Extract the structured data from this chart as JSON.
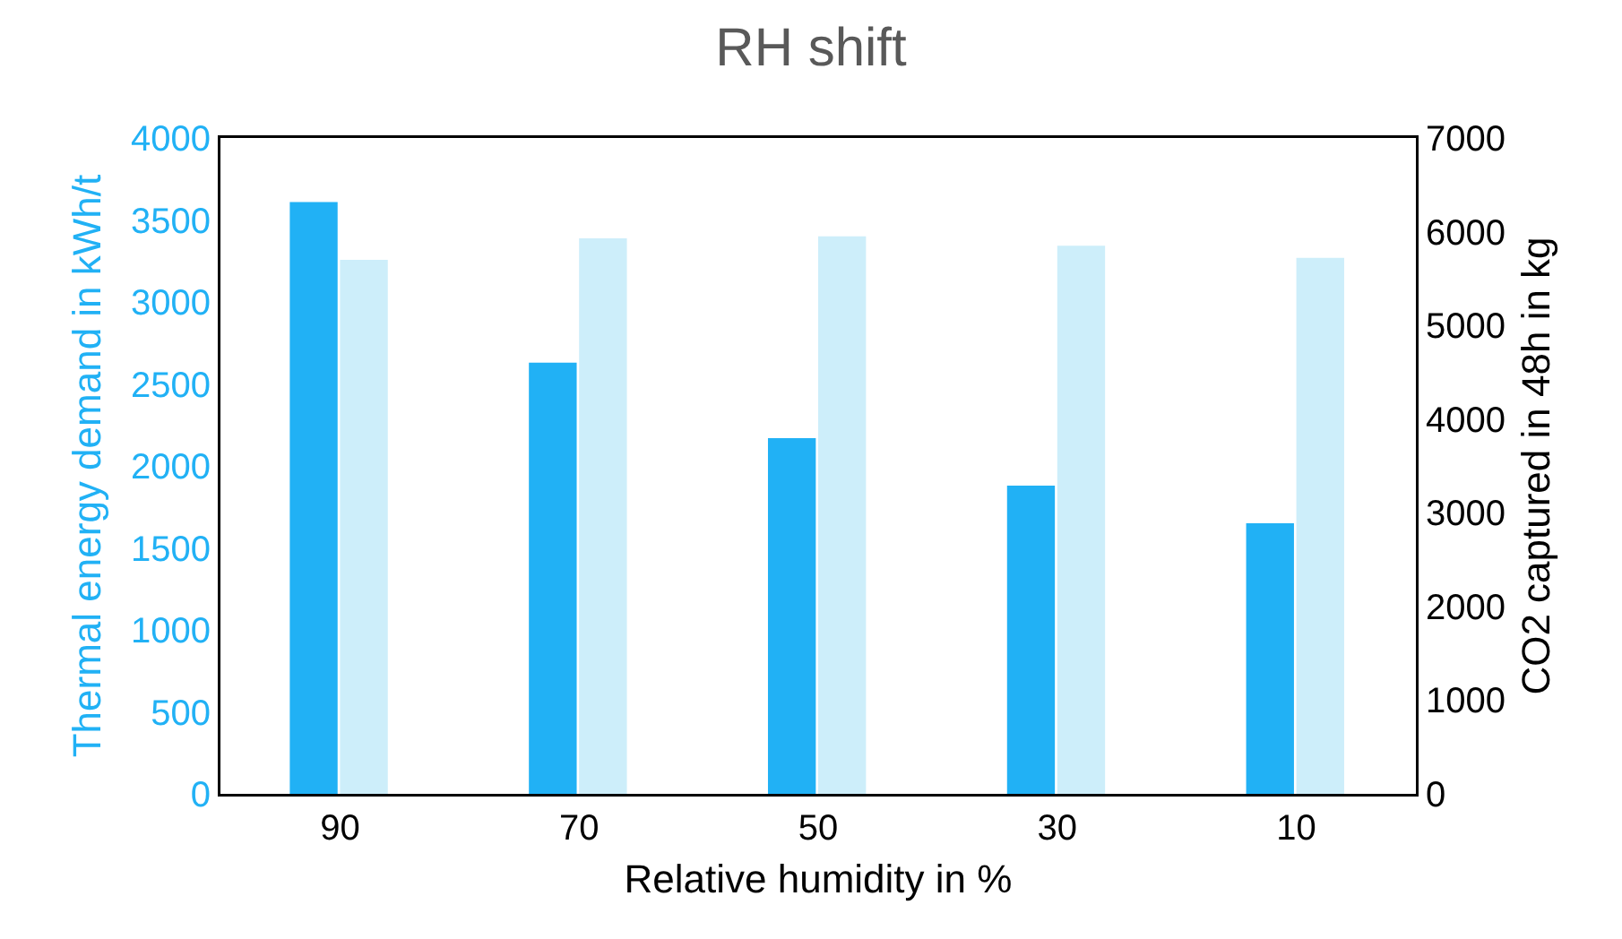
{
  "chart_data": {
    "type": "bar",
    "title": "RH shift",
    "xlabel": "Relative humidity in %",
    "ylabel": "Thermal energy demand in kWh/t",
    "y2label": "CO2 captured in 48h in kg",
    "categories": [
      "90",
      "70",
      "50",
      "30",
      "10"
    ],
    "series": [
      {
        "color": "#21b1f5",
        "values": [
          3610,
          2630,
          2170,
          1880,
          1650
        ]
      },
      {
        "color": "#cdeefa",
        "axis": "y2",
        "values": [
          5700,
          5930,
          5950,
          5850,
          5720
        ]
      }
    ],
    "ylim": [
      0,
      4000
    ],
    "yticks": [
      0,
      500,
      1000,
      1500,
      2000,
      2500,
      3000,
      3500,
      4000
    ],
    "y2lim": [
      0,
      7000
    ],
    "y2ticks": [
      0,
      1000,
      2000,
      3000,
      4000,
      5000,
      6000,
      7000
    ],
    "grid": false,
    "legend": false
  }
}
